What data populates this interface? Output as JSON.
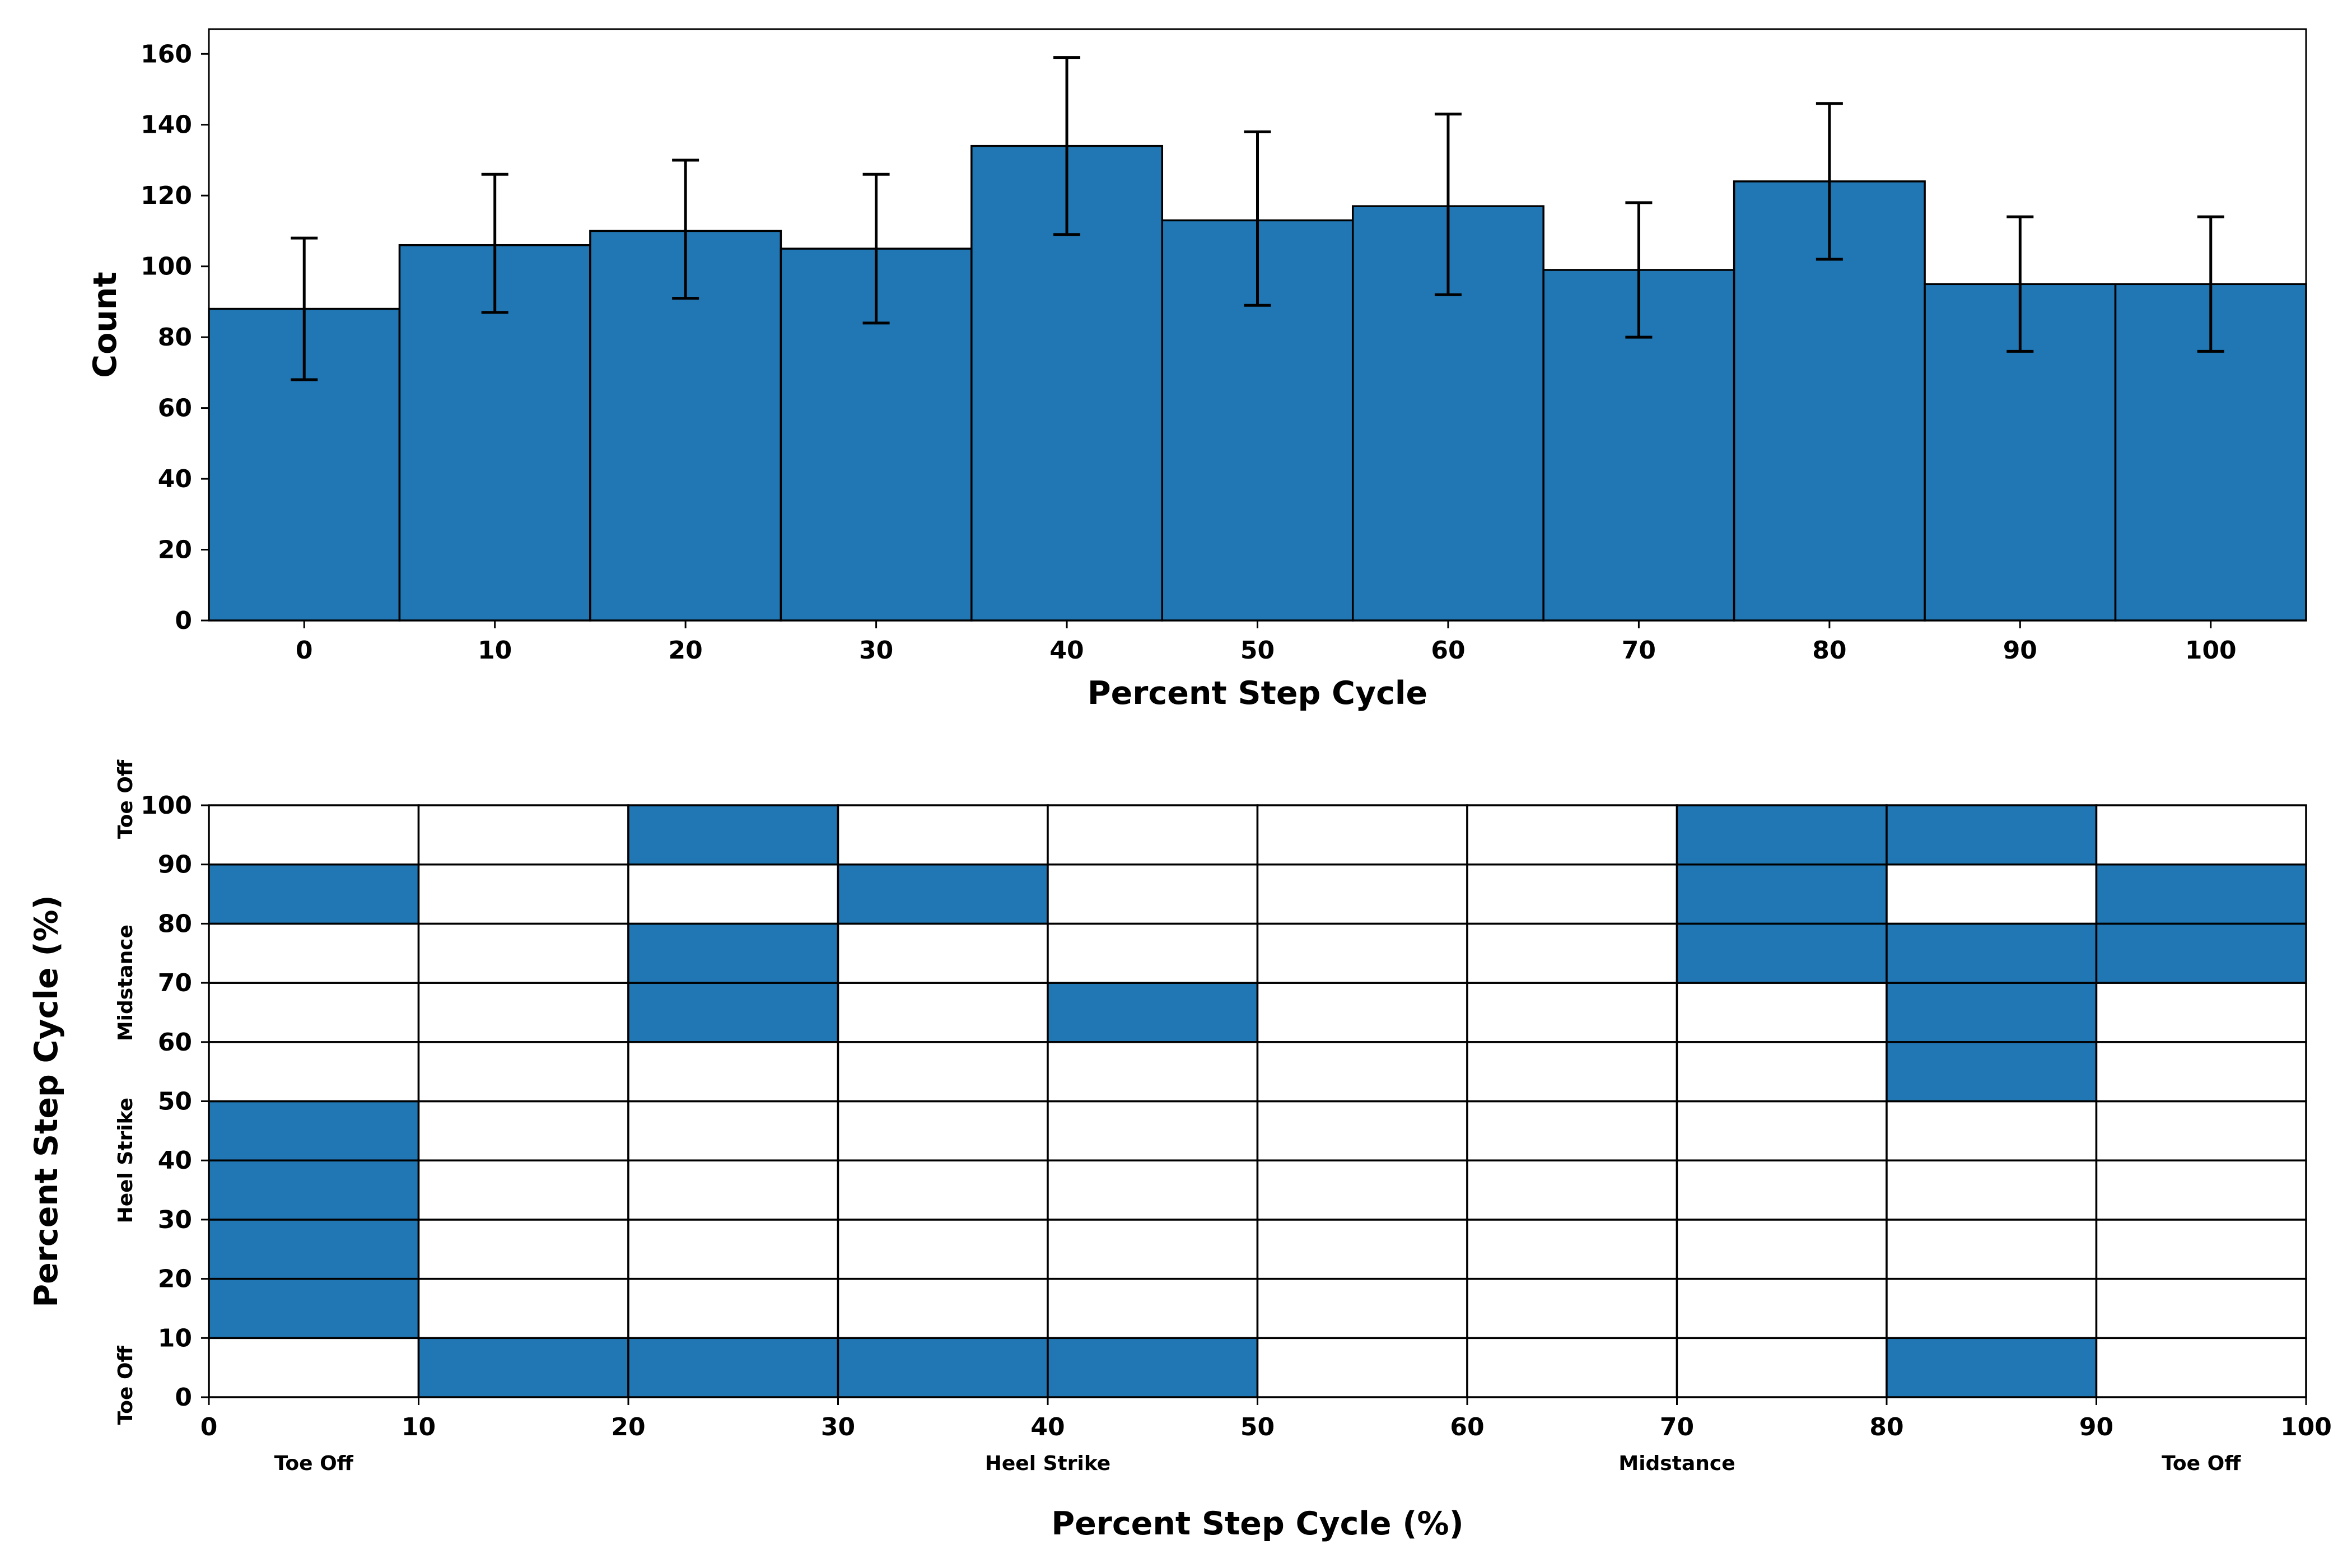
{
  "colors": {
    "bar_fill": "#2077b4",
    "edge": "#000000",
    "cell_empty": "#ffffff"
  },
  "chart_data": [
    {
      "type": "bar",
      "title": "",
      "xlabel": "Percent Step Cycle",
      "ylabel": "Count",
      "categories": [
        "0",
        "10",
        "20",
        "30",
        "40",
        "50",
        "60",
        "70",
        "80",
        "90",
        "100"
      ],
      "values": [
        88,
        106,
        110,
        105,
        134,
        113,
        117,
        99,
        124,
        95,
        95
      ],
      "error_low": [
        68,
        87,
        91,
        84,
        109,
        89,
        92,
        80,
        102,
        76,
        76
      ],
      "error_high": [
        108,
        126,
        130,
        126,
        159,
        138,
        143,
        118,
        146,
        114,
        114
      ],
      "ylim": [
        0,
        167
      ],
      "yticks": [
        "0",
        "20",
        "40",
        "60",
        "80",
        "100",
        "120",
        "140",
        "160"
      ],
      "grid": false,
      "legend": false
    },
    {
      "type": "heatmap",
      "title": "",
      "xlabel": "Percent Step Cycle (%)",
      "ylabel": "Percent Step Cycle (%)",
      "x_bins": [
        0,
        10,
        20,
        30,
        40,
        50,
        60,
        70,
        80,
        90,
        100
      ],
      "y_bins": [
        0,
        10,
        20,
        30,
        40,
        50,
        60,
        70,
        80,
        90,
        100
      ],
      "xticks": [
        "0",
        "10",
        "20",
        "30",
        "40",
        "50",
        "60",
        "70",
        "80",
        "90",
        "100"
      ],
      "yticks": [
        "0",
        "10",
        "20",
        "30",
        "40",
        "50",
        "60",
        "70",
        "80",
        "90",
        "100"
      ],
      "filled_cells": [
        [
          0,
          1
        ],
        [
          0,
          2
        ],
        [
          0,
          3
        ],
        [
          0,
          4
        ],
        [
          0,
          8
        ],
        [
          1,
          0
        ],
        [
          2,
          0
        ],
        [
          3,
          0
        ],
        [
          4,
          0
        ],
        [
          5,
          8
        ],
        [
          8,
          0
        ],
        [
          6,
          2
        ],
        [
          6,
          4
        ],
        [
          6,
          8
        ],
        [
          7,
          2
        ],
        [
          7,
          7
        ],
        [
          7,
          8
        ],
        [
          7,
          9
        ],
        [
          8,
          3
        ],
        [
          8,
          7
        ],
        [
          8,
          9
        ],
        [
          9,
          2
        ],
        [
          9,
          7
        ],
        [
          9,
          8
        ]
      ],
      "x_phase_labels": [
        {
          "text": "Toe Off",
          "at": 5
        },
        {
          "text": "Heel Strike",
          "at": 40
        },
        {
          "text": "Midstance",
          "at": 70
        },
        {
          "text": "Toe Off",
          "at": 95
        }
      ],
      "y_phase_labels": [
        {
          "text": "Toe Off",
          "at": 2
        },
        {
          "text": "Heel Strike",
          "at": 40
        },
        {
          "text": "Midstance",
          "at": 70
        },
        {
          "text": "Toe Off",
          "at": 101
        }
      ],
      "grid": true,
      "legend": false
    }
  ]
}
